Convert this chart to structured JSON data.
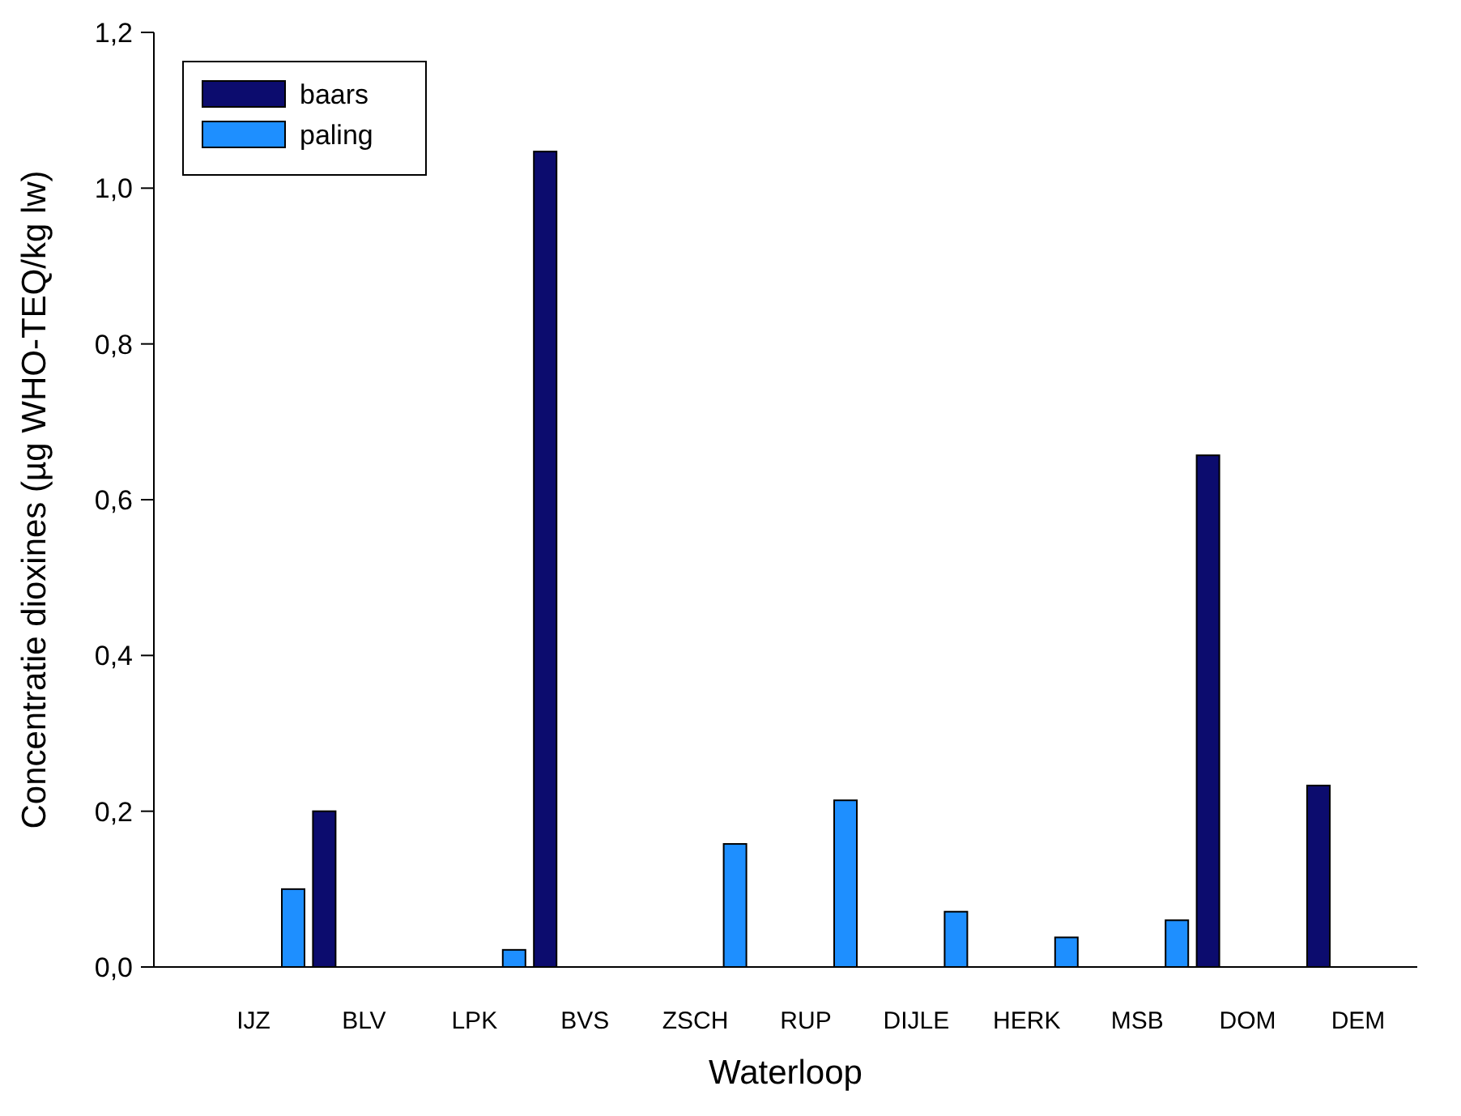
{
  "chart_data": {
    "type": "bar",
    "xlabel": "Waterloop",
    "ylabel": "Concentratie dioxines (µg WHO-TEQ/kg lw)",
    "categories": [
      "IJZ",
      "BLV",
      "LPK",
      "BVS",
      "ZSCH",
      "RUP",
      "DIJLE",
      "HERK",
      "MSB",
      "DOM",
      "DEM"
    ],
    "series": [
      {
        "name": "baars",
        "color": "#0c0c6e",
        "values": [
          null,
          0.2,
          null,
          1.047,
          null,
          null,
          null,
          null,
          null,
          0.657,
          0.233
        ]
      },
      {
        "name": "paling",
        "color": "#1e8fff",
        "values": [
          0.1,
          null,
          0.022,
          null,
          0.158,
          0.214,
          0.071,
          0.038,
          0.06,
          null,
          null
        ]
      }
    ],
    "ylim": [
      0,
      1.2
    ],
    "yticks": [
      {
        "value": 0,
        "label": "0,0"
      },
      {
        "value": 0.2,
        "label": "0,2"
      },
      {
        "value": 0.4,
        "label": "0,4"
      },
      {
        "value": 0.6,
        "label": "0,6"
      },
      {
        "value": 0.8,
        "label": "0,8"
      },
      {
        "value": 1.0,
        "label": "1,0"
      },
      {
        "value": 1.2,
        "label": "1,2"
      }
    ],
    "legend": "top left"
  }
}
